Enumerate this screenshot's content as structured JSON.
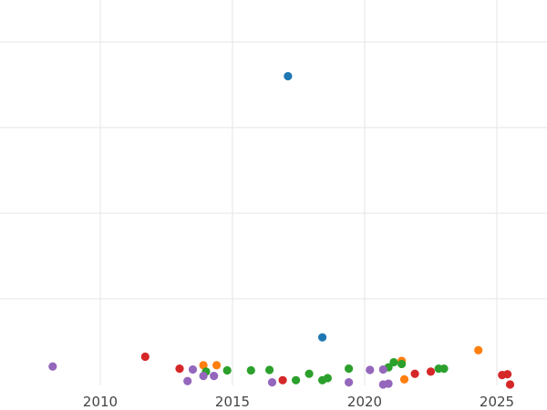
{
  "chart_data": {
    "type": "scatter",
    "title": "",
    "xlabel": "",
    "ylabel": "",
    "xlim": [
      2010.0,
      2026.9
    ],
    "x_ticks": [
      2010,
      2015,
      2020,
      2025
    ],
    "x_tick_labels": [
      "2010",
      "2015",
      "2020",
      "2025"
    ],
    "ylim": [
      0.0,
      95.0
    ],
    "y_gridlines": [
      20,
      40,
      60,
      80
    ],
    "y_tick_labels_visible": false,
    "grid": true,
    "legend": "none",
    "series": [
      {
        "color": "#1f77b4",
        "points": [
          {
            "x": 2017.1,
            "y": 72.0
          },
          {
            "x": 2018.4,
            "y": 11.0
          }
        ]
      },
      {
        "color": "#ff7f0e",
        "points": [
          {
            "x": 2013.9,
            "y": 4.5
          },
          {
            "x": 2014.4,
            "y": 4.5
          },
          {
            "x": 2021.4,
            "y": 5.5
          },
          {
            "x": 2021.5,
            "y": 1.2
          },
          {
            "x": 2024.3,
            "y": 8.0
          }
        ]
      },
      {
        "color": "#2ca02c",
        "points": [
          {
            "x": 2014.0,
            "y": 3.0
          },
          {
            "x": 2014.8,
            "y": 3.3
          },
          {
            "x": 2015.7,
            "y": 3.3
          },
          {
            "x": 2016.4,
            "y": 3.4
          },
          {
            "x": 2017.4,
            "y": 1.0
          },
          {
            "x": 2017.9,
            "y": 2.5
          },
          {
            "x": 2018.4,
            "y": 1.0
          },
          {
            "x": 2018.6,
            "y": 1.5
          },
          {
            "x": 2019.4,
            "y": 3.7
          },
          {
            "x": 2020.9,
            "y": 4.0
          },
          {
            "x": 2021.1,
            "y": 5.2
          },
          {
            "x": 2021.4,
            "y": 4.8
          },
          {
            "x": 2022.8,
            "y": 3.7
          },
          {
            "x": 2023.0,
            "y": 3.7
          }
        ]
      },
      {
        "color": "#d62728",
        "points": [
          {
            "x": 2011.7,
            "y": 6.5
          },
          {
            "x": 2013.0,
            "y": 3.7
          },
          {
            "x": 2016.9,
            "y": 1.0
          },
          {
            "x": 2021.9,
            "y": 2.5
          },
          {
            "x": 2022.5,
            "y": 3.0
          },
          {
            "x": 2025.2,
            "y": 2.2
          },
          {
            "x": 2025.4,
            "y": 2.4
          },
          {
            "x": 2025.5,
            "y": 0.0
          }
        ]
      },
      {
        "color": "#9467bd",
        "points": [
          {
            "x": 2008.2,
            "y": 4.2
          },
          {
            "x": 2013.3,
            "y": 0.8
          },
          {
            "x": 2013.5,
            "y": 3.5
          },
          {
            "x": 2013.9,
            "y": 2.0
          },
          {
            "x": 2014.3,
            "y": 2.0
          },
          {
            "x": 2016.5,
            "y": 0.5
          },
          {
            "x": 2019.4,
            "y": 0.5
          },
          {
            "x": 2020.2,
            "y": 3.4
          },
          {
            "x": 2020.7,
            "y": 3.5
          },
          {
            "x": 2020.7,
            "y": 0.0
          },
          {
            "x": 2020.9,
            "y": 0.2
          }
        ]
      }
    ]
  }
}
